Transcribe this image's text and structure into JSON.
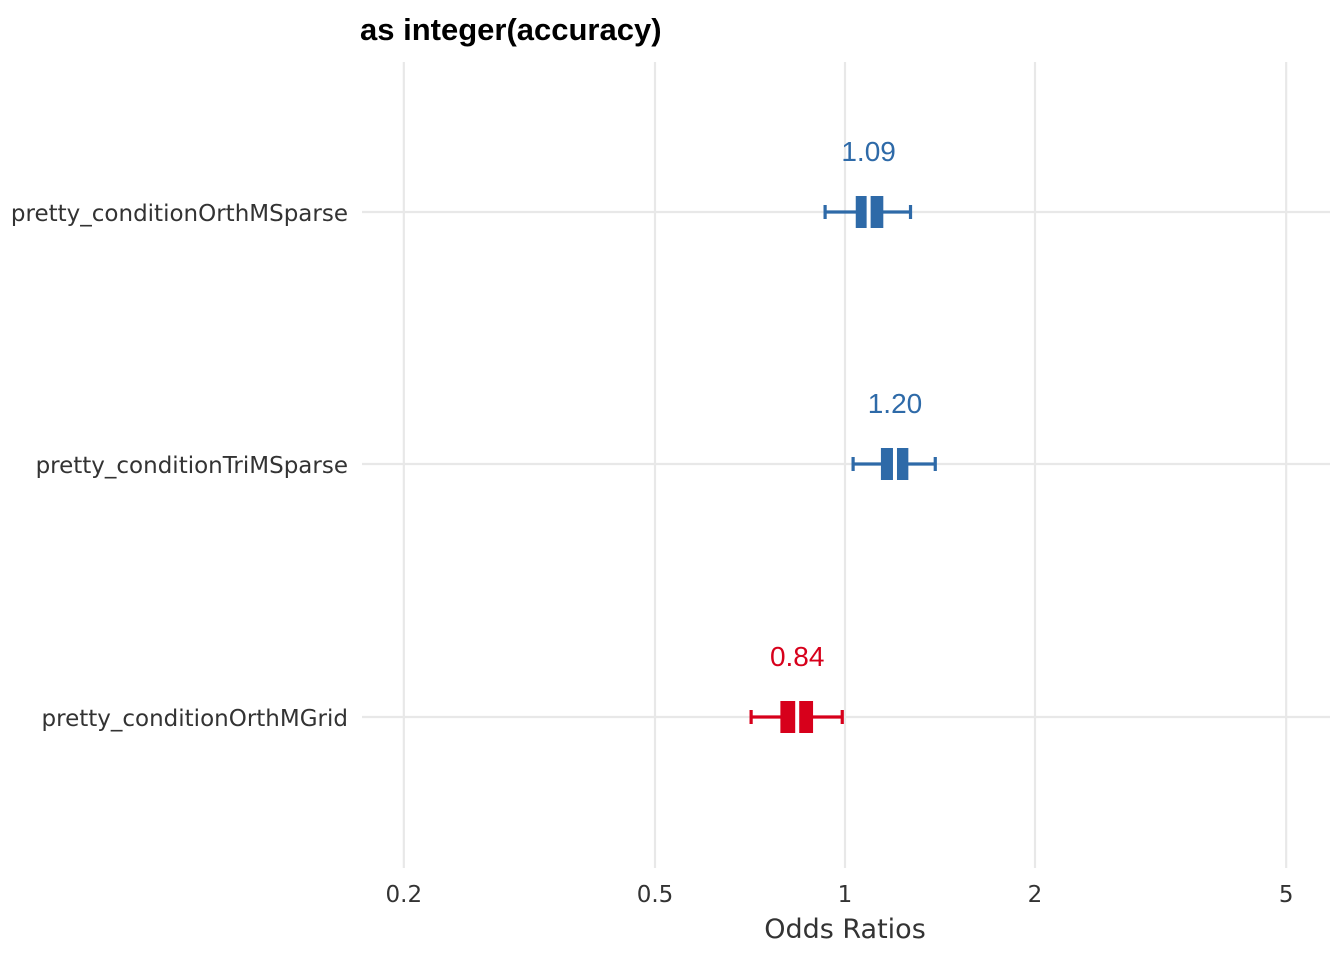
{
  "chart_data": {
    "type": "forest",
    "title": "as integer(accuracy)",
    "xlabel": "Odds Ratios",
    "ylabel": "",
    "x_scale": "log",
    "xlim": [
      0.18,
      5.5
    ],
    "x_ticks": [
      0.2,
      0.5,
      1,
      2,
      5
    ],
    "x_tick_labels": [
      "0.2",
      "0.5",
      "1",
      "2",
      "5"
    ],
    "grid": true,
    "colors": {
      "positive": "#2e6aa8",
      "negative": "#d7001b",
      "grid": "#e8e8e8"
    },
    "terms": [
      {
        "label": "pretty_conditionOrthMSparse",
        "estimate": 1.09,
        "value_label": "1.09",
        "ci_low": 0.93,
        "ci_high": 1.27,
        "inner_low": 1.04,
        "inner_high": 1.15,
        "direction": "positive"
      },
      {
        "label": "pretty_conditionTriMSparse",
        "estimate": 1.2,
        "value_label": "1.20",
        "ci_low": 1.03,
        "ci_high": 1.39,
        "inner_low": 1.14,
        "inner_high": 1.26,
        "direction": "positive"
      },
      {
        "label": "pretty_conditionOrthMGrid",
        "estimate": 0.84,
        "value_label": "0.84",
        "ci_low": 0.71,
        "ci_high": 0.99,
        "inner_low": 0.79,
        "inner_high": 0.89,
        "direction": "negative"
      }
    ]
  }
}
